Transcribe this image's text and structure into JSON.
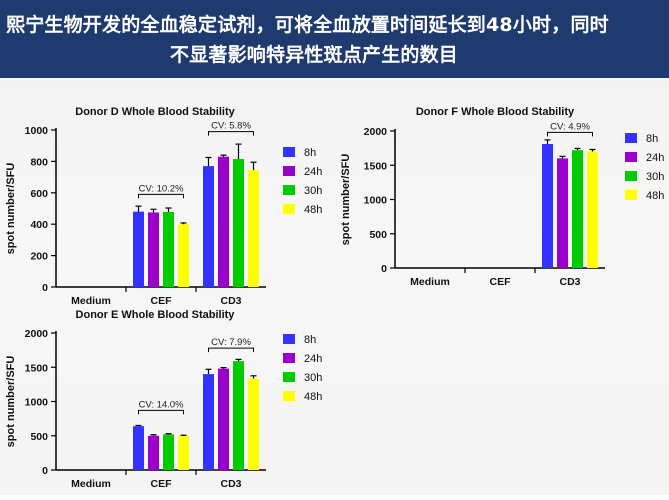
{
  "header": {
    "line1": "熙宁生物开发的全血稳定试剂，可将全血放置时间延长到48小时，同时",
    "line2": "不显著影响特异性斑点产生的数目"
  },
  "colors": {
    "8h": "#3333ff",
    "24h": "#9900cc",
    "30h": "#00cc00",
    "48h": "#ffff00"
  },
  "chart_data": [
    {
      "type": "bar",
      "title": "Donor D Whole Blood Stability",
      "ylabel": "spot number/SFU",
      "categories": [
        "Medium",
        "CEF",
        "CD3"
      ],
      "ylim": [
        0,
        1000
      ],
      "yticks": [
        0,
        200,
        400,
        600,
        800,
        1000
      ],
      "series": [
        {
          "name": "8h",
          "values": [
            0,
            480,
            770
          ],
          "errors": [
            0,
            35,
            55
          ]
        },
        {
          "name": "24h",
          "values": [
            0,
            475,
            830
          ],
          "errors": [
            0,
            20,
            10
          ]
        },
        {
          "name": "30h",
          "values": [
            0,
            478,
            815
          ],
          "errors": [
            0,
            25,
            95
          ]
        },
        {
          "name": "48h",
          "values": [
            0,
            400,
            745
          ],
          "errors": [
            0,
            8,
            50
          ]
        }
      ],
      "annotations": [
        {
          "category": "CEF",
          "label": "CV: 10.2%",
          "level": 590
        },
        {
          "category": "CD3",
          "label": "CV: 5.8%",
          "level": 990
        }
      ],
      "legend": "right"
    },
    {
      "type": "bar",
      "title": "Donor F Whole Blood Stability",
      "ylabel": "spot number/SFU",
      "categories": [
        "Medium",
        "CEF",
        "CD3"
      ],
      "ylim": [
        0,
        2000
      ],
      "yticks": [
        0,
        500,
        1000,
        1500,
        2000
      ],
      "series": [
        {
          "name": "8h",
          "values": [
            0,
            0,
            1810
          ],
          "errors": [
            0,
            0,
            60
          ]
        },
        {
          "name": "24h",
          "values": [
            0,
            0,
            1600
          ],
          "errors": [
            0,
            0,
            30
          ]
        },
        {
          "name": "30h",
          "values": [
            0,
            0,
            1720
          ],
          "errors": [
            0,
            0,
            25
          ]
        },
        {
          "name": "48h",
          "values": [
            0,
            0,
            1700
          ],
          "errors": [
            0,
            0,
            30
          ]
        }
      ],
      "annotations": [
        {
          "category": "CD3",
          "label": "CV: 4.9%",
          "level": 1980
        }
      ],
      "legend": "right"
    },
    {
      "type": "bar",
      "title": "Donor E Whole Blood Stability",
      "ylabel": "spot number/SFU",
      "categories": [
        "Medium",
        "CEF",
        "CD3"
      ],
      "ylim": [
        0,
        2000
      ],
      "yticks": [
        0,
        500,
        1000,
        1500,
        2000
      ],
      "series": [
        {
          "name": "8h",
          "values": [
            0,
            640,
            1400
          ],
          "errors": [
            0,
            10,
            70
          ]
        },
        {
          "name": "24h",
          "values": [
            0,
            500,
            1480
          ],
          "errors": [
            0,
            15,
            15
          ]
        },
        {
          "name": "30h",
          "values": [
            0,
            520,
            1590
          ],
          "errors": [
            0,
            10,
            25
          ]
        },
        {
          "name": "48h",
          "values": [
            0,
            500,
            1335
          ],
          "errors": [
            0,
            8,
            40
          ]
        }
      ],
      "annotations": [
        {
          "category": "CEF",
          "label": "CV: 14.0%",
          "level": 870
        },
        {
          "category": "CD3",
          "label": "CV: 7.9%",
          "level": 1780
        }
      ],
      "legend": "right"
    }
  ]
}
